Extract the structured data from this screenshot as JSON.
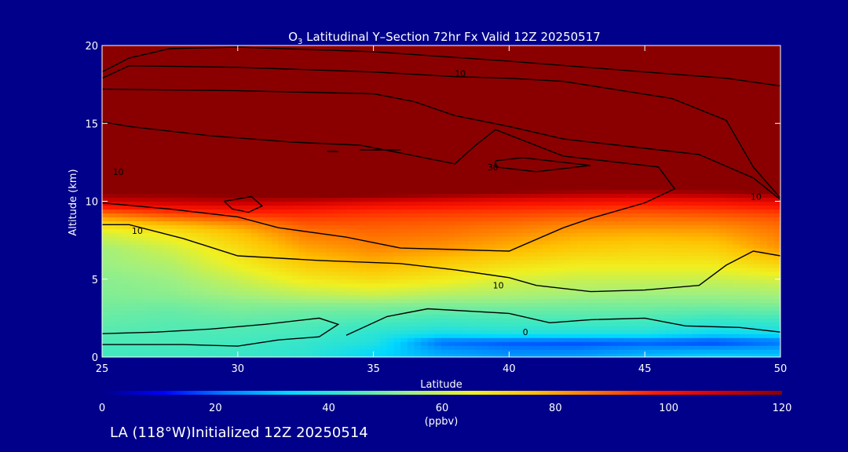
{
  "chart_data": {
    "type": "heatmap",
    "title_prefix": "O",
    "title_subscript": "3",
    "title_rest": " Latitudinal Y–Section 72hr  Fx Valid 12Z 20250517",
    "xlabel": "Latitude",
    "ylabel": "Altitude (km)",
    "xlim": [
      25,
      50
    ],
    "ylim": [
      0,
      20
    ],
    "x_ticks": [
      "25",
      "30",
      "35",
      "40",
      "45",
      "50"
    ],
    "y_ticks": [
      "0",
      "5",
      "10",
      "15",
      "20"
    ],
    "colorbar": {
      "label": "(ppbv)",
      "range": [
        0,
        120
      ],
      "ticks": [
        "0",
        "20",
        "40",
        "60",
        "80",
        "100",
        "120"
      ],
      "colors": [
        "#00008a",
        "#0000ff",
        "#0080ff",
        "#00d8ff",
        "#40e8c0",
        "#a0f080",
        "#f0f020",
        "#ffc000",
        "#ff7000",
        "#ff1800",
        "#d00000",
        "#8a0000"
      ]
    },
    "lat_points": [
      25,
      27.5,
      30,
      32.5,
      35,
      37.5,
      40,
      42.5,
      45,
      47.5,
      50
    ],
    "altitudes_km": [
      0,
      0.5,
      1,
      1.5,
      2,
      2.5,
      3,
      3.5,
      4,
      5,
      6,
      7,
      8,
      8.5,
      9,
      9.5,
      10,
      10.5,
      11,
      12,
      15,
      20
    ],
    "ozone_ppbv": [
      [
        44,
        43,
        42,
        40,
        33,
        28,
        25,
        26,
        30,
        33,
        31
      ],
      [
        44,
        44,
        43,
        41,
        35,
        25,
        22,
        22,
        25,
        26,
        27
      ],
      [
        45,
        45,
        44,
        42,
        39,
        20,
        18,
        17,
        18,
        16,
        20
      ],
      [
        46,
        45,
        45,
        44,
        40,
        36,
        38,
        38,
        38,
        34,
        36
      ],
      [
        47,
        46,
        46,
        45,
        43,
        41,
        42,
        42,
        42,
        39,
        40
      ],
      [
        48,
        47,
        48,
        47,
        46,
        44,
        45,
        45,
        45,
        43,
        44
      ],
      [
        49,
        48,
        50,
        49,
        49,
        48,
        48,
        48,
        48,
        47,
        48
      ],
      [
        50,
        50,
        52,
        53,
        53,
        52,
        52,
        51,
        51,
        51,
        52
      ],
      [
        51,
        52,
        55,
        58,
        60,
        57,
        56,
        55,
        54,
        54,
        55
      ],
      [
        52,
        54,
        60,
        67,
        70,
        67,
        62,
        60,
        60,
        60,
        62
      ],
      [
        54,
        57,
        66,
        74,
        78,
        74,
        70,
        67,
        67,
        67,
        72
      ],
      [
        55,
        61,
        70,
        80,
        84,
        82,
        78,
        74,
        72,
        73,
        82
      ],
      [
        62,
        68,
        76,
        86,
        88,
        87,
        84,
        80,
        79,
        80,
        86
      ],
      [
        70,
        76,
        82,
        90,
        90,
        89,
        87,
        84,
        84,
        84,
        88
      ],
      [
        82,
        88,
        92,
        94,
        93,
        92,
        91,
        89,
        88,
        89,
        91
      ],
      [
        94,
        98,
        100,
        99,
        97,
        96,
        95,
        94,
        93,
        94,
        96
      ],
      [
        108,
        110,
        112,
        110,
        106,
        104,
        102,
        101,
        100,
        101,
        104
      ],
      [
        120,
        120,
        122,
        125,
        124,
        120,
        116,
        113,
        112,
        114,
        118
      ],
      [
        132,
        132,
        132,
        134,
        134,
        132,
        130,
        128,
        126,
        126,
        130
      ],
      [
        150,
        150,
        150,
        150,
        150,
        150,
        150,
        150,
        150,
        150,
        150
      ],
      [
        200,
        200,
        200,
        200,
        200,
        200,
        200,
        200,
        200,
        200,
        200
      ],
      [
        300,
        300,
        300,
        300,
        300,
        300,
        300,
        300,
        300,
        300,
        300
      ]
    ],
    "contours": [
      {
        "label": "10",
        "points": [
          [
            25,
            18.3
          ],
          [
            26,
            19.2
          ],
          [
            27.5,
            19.8
          ],
          [
            30,
            19.9
          ],
          [
            35,
            19.6
          ],
          [
            40,
            19.0
          ],
          [
            45,
            18.3
          ],
          [
            48,
            17.9
          ],
          [
            50,
            17.4
          ]
        ]
      },
      {
        "label": "10",
        "points": [
          [
            25,
            17.9
          ],
          [
            26,
            18.7
          ],
          [
            30,
            18.6
          ],
          [
            35,
            18.3
          ],
          [
            38,
            18.0
          ],
          [
            40,
            17.9
          ],
          [
            42,
            17.7
          ],
          [
            46,
            16.6
          ],
          [
            48,
            15.2
          ],
          [
            49,
            12.2
          ],
          [
            50,
            10.2
          ]
        ]
      },
      {
        "label": "10",
        "points": [
          [
            25,
            17.2
          ],
          [
            30,
            17.1
          ],
          [
            35,
            16.9
          ],
          [
            36.5,
            16.4
          ],
          [
            38,
            15.5
          ],
          [
            40,
            14.8
          ],
          [
            42,
            14.0
          ],
          [
            44,
            13.6
          ],
          [
            47,
            13.0
          ],
          [
            49,
            11.5
          ],
          [
            50,
            10.1
          ]
        ]
      },
      {
        "label": "10",
        "points": [
          [
            25,
            15.1
          ],
          [
            26,
            14.8
          ],
          [
            29,
            14.2
          ],
          [
            32,
            13.8
          ],
          [
            34.5,
            13.6
          ],
          [
            36,
            13.1
          ],
          [
            38,
            12.4
          ],
          [
            38.7,
            13.5
          ],
          [
            39.5,
            14.6
          ],
          [
            42,
            12.9
          ],
          [
            45.5,
            12.2
          ],
          [
            46.1,
            10.8
          ],
          [
            45,
            9.9
          ],
          [
            43,
            8.9
          ],
          [
            42,
            8.3
          ],
          [
            40,
            6.8
          ],
          [
            38,
            6.9
          ],
          [
            36,
            7.0
          ],
          [
            34,
            7.7
          ],
          [
            31.5,
            8.3
          ],
          [
            30,
            9.0
          ],
          [
            27.5,
            9.5
          ],
          [
            25,
            9.9
          ]
        ]
      },
      {
        "label": "10",
        "points": [
          [
            25,
            8.5
          ],
          [
            26,
            8.5
          ],
          [
            28,
            7.6
          ],
          [
            30,
            6.5
          ],
          [
            33,
            6.2
          ],
          [
            36,
            6.0
          ],
          [
            38,
            5.6
          ],
          [
            40,
            5.1
          ],
          [
            41,
            4.6
          ],
          [
            43,
            4.2
          ],
          [
            45,
            4.3
          ],
          [
            47,
            4.6
          ],
          [
            48,
            5.9
          ],
          [
            49,
            6.8
          ],
          [
            50,
            6.5
          ]
        ]
      },
      {
        "label": "10",
        "points": [
          [
            25,
            0.8
          ],
          [
            28,
            0.8
          ],
          [
            30,
            0.7
          ],
          [
            31.5,
            1.1
          ],
          [
            33,
            1.3
          ],
          [
            33.7,
            2.1
          ],
          [
            33,
            2.5
          ],
          [
            31,
            2.1
          ],
          [
            29,
            1.8
          ],
          [
            27,
            1.6
          ],
          [
            25,
            1.5
          ]
        ]
      },
      {
        "label": "10",
        "points": [
          [
            34,
            1.4
          ],
          [
            35.5,
            2.6
          ],
          [
            37,
            3.1
          ],
          [
            40,
            2.8
          ],
          [
            41.5,
            2.2
          ],
          [
            43,
            2.4
          ],
          [
            45,
            2.5
          ],
          [
            46.5,
            2.0
          ],
          [
            48.5,
            1.9
          ],
          [
            50,
            1.6
          ]
        ]
      },
      {
        "label": "",
        "points": [
          [
            29.5,
            10.0
          ],
          [
            30.5,
            10.3
          ],
          [
            30.9,
            9.7
          ],
          [
            30.4,
            9.3
          ],
          [
            29.8,
            9.5
          ],
          [
            29.5,
            10.0
          ]
        ]
      },
      {
        "label": "30",
        "points": [
          [
            39.5,
            12.6
          ],
          [
            40.5,
            12.8
          ],
          [
            43,
            12.3
          ],
          [
            41,
            11.9
          ],
          [
            39.5,
            12.2
          ],
          [
            39.5,
            12.6
          ]
        ]
      },
      {
        "label": "",
        "points": [
          [
            33.3,
            13.2
          ],
          [
            33.7,
            13.2
          ]
        ]
      },
      {
        "label": "",
        "points": [
          [
            34.5,
            13.3
          ],
          [
            36,
            13.3
          ]
        ]
      }
    ],
    "contour_labels": [
      {
        "text": "10",
        "lat": 38.2,
        "alt": 18.2
      },
      {
        "text": "10",
        "lat": 25.6,
        "alt": 11.9
      },
      {
        "text": "10",
        "lat": 26.3,
        "alt": 8.1
      },
      {
        "text": "10",
        "lat": 39.6,
        "alt": 4.6
      },
      {
        "text": "10",
        "lat": 49.1,
        "alt": 10.3
      },
      {
        "text": "30",
        "lat": 39.4,
        "alt": 12.2
      },
      {
        "text": "0",
        "lat": 40.6,
        "alt": 1.6
      }
    ]
  },
  "footer": "LA (118°W)Initialized 12Z 20250514"
}
